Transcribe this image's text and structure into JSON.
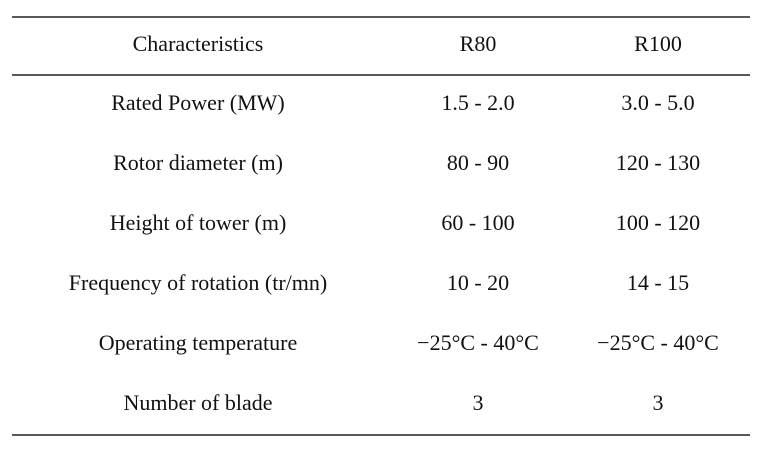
{
  "table": {
    "headers": [
      "Characteristics",
      "R80",
      "R100"
    ],
    "rows": [
      [
        "Rated Power (MW)",
        "1.5 - 2.0",
        "3.0 - 5.0"
      ],
      [
        "Rotor diameter (m)",
        "80 - 90",
        "120 - 130"
      ],
      [
        "Height of tower (m)",
        "60 - 100",
        "100 - 120"
      ],
      [
        "Frequency of rotation (tr/mn)",
        "10 - 20",
        "14 - 15"
      ],
      [
        "Operating temperature",
        "−25°C - 40°C",
        "−25°C - 40°C"
      ],
      [
        "Number of blade",
        "3",
        "3"
      ]
    ]
  }
}
